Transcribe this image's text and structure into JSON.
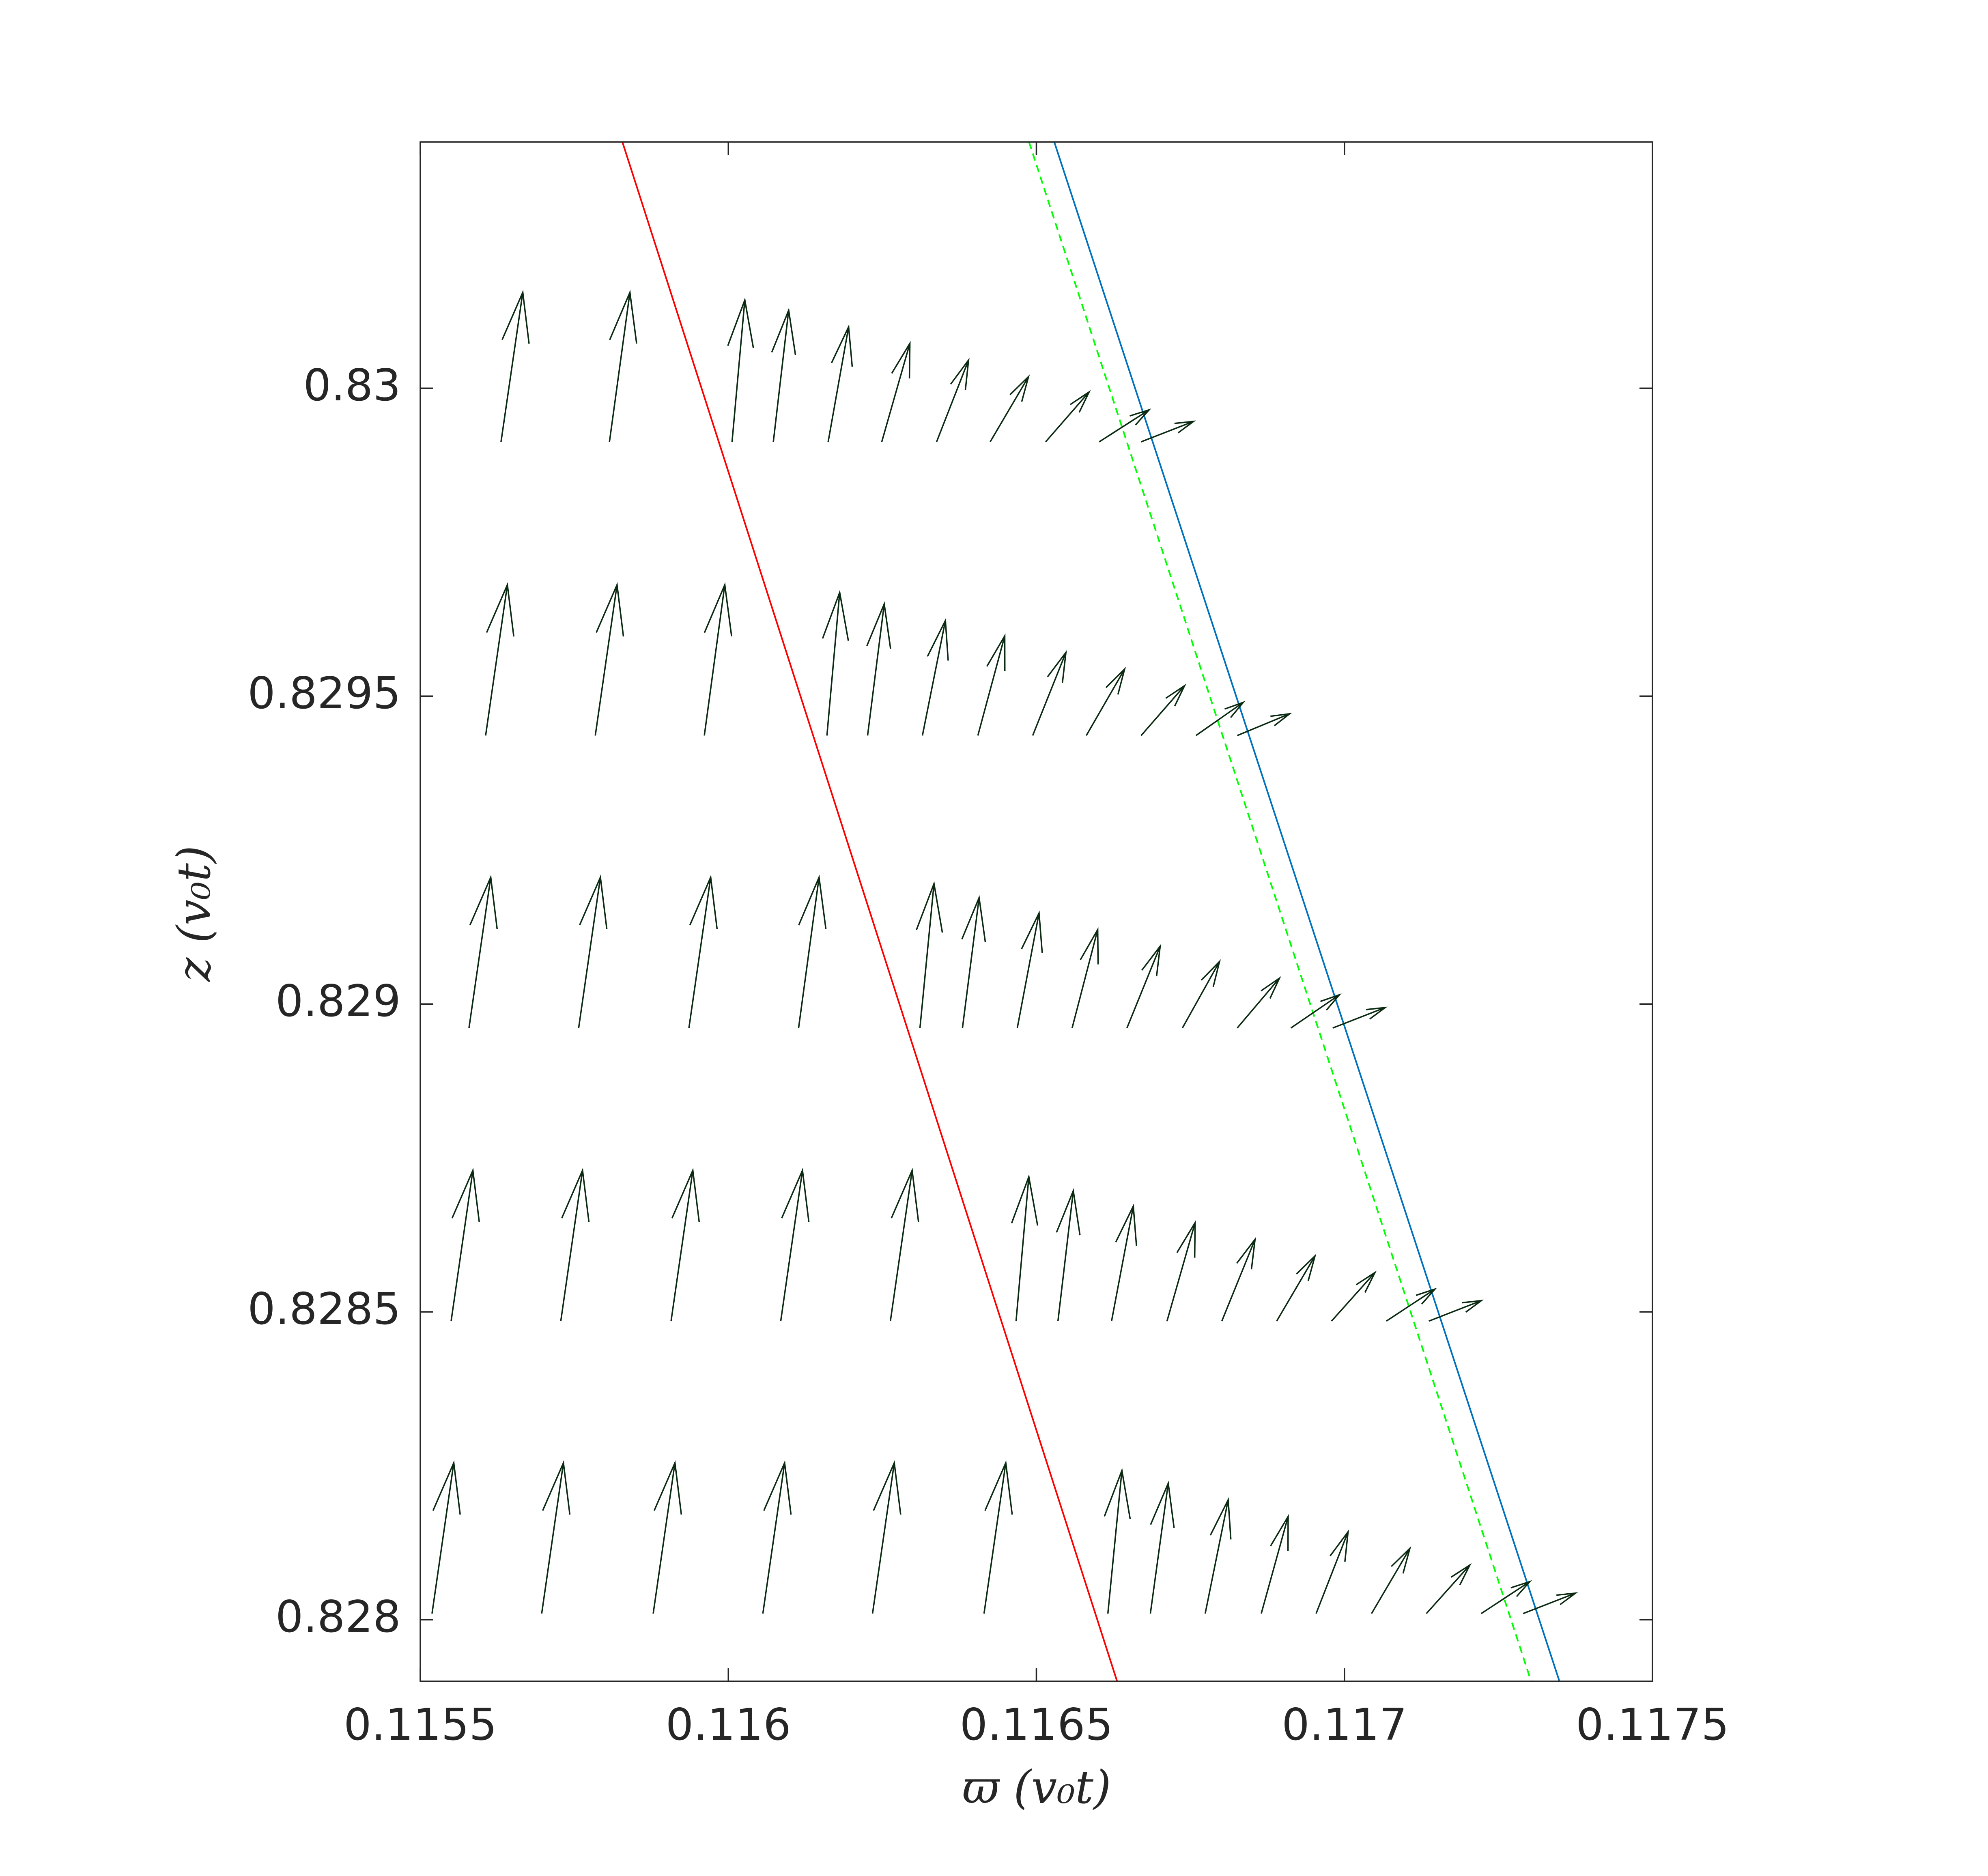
{
  "chart_data": {
    "type": "quiver",
    "xlabel": "ϖ (v₀t)",
    "ylabel": "z (v₀t)",
    "xlim": [
      0.1155,
      0.1175
    ],
    "ylim": [
      0.8279,
      0.8304
    ],
    "xticks": [
      0.1155,
      0.116,
      0.1165,
      0.117,
      0.1175
    ],
    "yticks": [
      0.828,
      0.8285,
      0.829,
      0.8295,
      0.83
    ],
    "grid": false,
    "arrows": {
      "color": "#0b2a12",
      "x": [
        0.115631,
        0.115807,
        0.116006,
        0.116073,
        0.116162,
        0.116249,
        0.116338,
        0.116425,
        0.116515,
        0.116602,
        0.11667,
        0.115606,
        0.115784,
        0.115961,
        0.11616,
        0.116226,
        0.116315,
        0.116405,
        0.116494,
        0.116581,
        0.11667,
        0.116759,
        0.116826,
        0.115579,
        0.115757,
        0.115936,
        0.116114,
        0.116311,
        0.11638,
        0.116469,
        0.116558,
        0.116647,
        0.116737,
        0.116826,
        0.116913,
        0.116981,
        0.11555,
        0.115728,
        0.115907,
        0.116085,
        0.116263,
        0.116467,
        0.116535,
        0.116622,
        0.116712,
        0.116801,
        0.11689,
        0.116979,
        0.117068,
        0.117137,
        0.115519,
        0.115697,
        0.115878,
        0.116056,
        0.116234,
        0.116415,
        0.116616,
        0.116685,
        0.116774,
        0.116865,
        0.116954,
        0.117044,
        0.117133,
        0.117222,
        0.11729
      ],
      "y": [
        0.829913,
        0.829913,
        0.829913,
        0.829913,
        0.829913,
        0.829913,
        0.829913,
        0.829913,
        0.829913,
        0.829913,
        0.829913,
        0.829436,
        0.829436,
        0.829436,
        0.829436,
        0.829436,
        0.829436,
        0.829436,
        0.829436,
        0.829436,
        0.829436,
        0.829436,
        0.829436,
        0.828961,
        0.828961,
        0.828961,
        0.828961,
        0.828961,
        0.828961,
        0.828961,
        0.828961,
        0.828961,
        0.828961,
        0.828961,
        0.828961,
        0.828961,
        0.828485,
        0.828485,
        0.828485,
        0.828485,
        0.828485,
        0.828485,
        0.828485,
        0.828485,
        0.828485,
        0.828485,
        0.828485,
        0.828485,
        0.828485,
        0.828485,
        0.82801,
        0.82801,
        0.82801,
        0.82801,
        0.82801,
        0.82801,
        0.82801,
        0.82801,
        0.82801,
        0.82801,
        0.82801,
        0.82801,
        0.82801,
        0.82801,
        0.82801
      ],
      "u": [
        3.53e-05,
        3.32e-05,
        2.07e-05,
        2.49e-05,
        3.32e-05,
        4.56e-05,
        5.19e-05,
        6.22e-05,
        7.05e-05,
        8.09e-05,
        8.51e-05,
        3.53e-05,
        3.53e-05,
        3.32e-05,
        2.07e-05,
        2.7e-05,
        3.73e-05,
        4.36e-05,
        5.39e-05,
        6.22e-05,
        7.05e-05,
        7.68e-05,
        8.51e-05,
        3.53e-05,
        3.53e-05,
        3.53e-05,
        3.32e-05,
        2.28e-05,
        2.7e-05,
        3.53e-05,
        4.15e-05,
        5.39e-05,
        6.02e-05,
        6.85e-05,
        7.88e-05,
        8.51e-05,
        3.53e-05,
        3.53e-05,
        3.53e-05,
        3.53e-05,
        3.53e-05,
        2.07e-05,
        2.49e-05,
        3.53e-05,
        4.56e-05,
        5.39e-05,
        6.22e-05,
        7.05e-05,
        7.88e-05,
        8.51e-05,
        3.53e-05,
        3.53e-05,
        3.53e-05,
        3.53e-05,
        3.53e-05,
        3.53e-05,
        2.28e-05,
        2.9e-05,
        3.73e-05,
        4.36e-05,
        5.19e-05,
        6.22e-05,
        7.05e-05,
        7.88e-05,
        8.51e-05
      ],
      "v": [
        0.0002427,
        0.0002427,
        0.0002303,
        0.0002137,
        0.0001867,
        0.0001598,
        0.0001328,
        0.0001058,
        8.09e-05,
        5.19e-05,
        3.32e-05,
        0.0002448,
        0.0002448,
        0.0002448,
        0.0002324,
        0.0002137,
        0.0001867,
        0.0001618,
        0.0001349,
        0.0001079,
        8.09e-05,
        5.39e-05,
        3.53e-05,
        0.0002448,
        0.0002448,
        0.0002448,
        0.0002448,
        0.0002344,
        0.0002116,
        0.0001867,
        0.0001598,
        0.0001328,
        0.0001079,
        8.09e-05,
        5.39e-05,
        3.32e-05,
        0.0002448,
        0.0002448,
        0.0002448,
        0.0002448,
        0.0002448,
        0.0002344,
        0.0002116,
        0.0001867,
        0.0001598,
        0.0001328,
        0.0001058,
        7.88e-05,
        5.19e-05,
        3.32e-05,
        0.0002448,
        0.0002448,
        0.0002448,
        0.0002448,
        0.0002448,
        0.0002448,
        0.0002324,
        0.0002116,
        0.0001847,
        0.0001577,
        0.0001328,
        0.0001058,
        7.88e-05,
        5.19e-05,
        3.32e-05
      ]
    },
    "lines": [
      {
        "x": [
          0.115828,
          0.116631
        ],
        "y": [
          0.8304,
          0.8279
        ],
        "color": "#ff0000",
        "style": "solid"
      },
      {
        "x": [
          0.116488,
          0.117303
        ],
        "y": [
          0.8304,
          0.8279
        ],
        "color": "#00ff00",
        "style": "dashed"
      },
      {
        "x": [
          0.116529,
          0.117349
        ],
        "y": [
          0.8304,
          0.8279
        ],
        "color": "#0072bd",
        "style": "solid"
      }
    ]
  }
}
